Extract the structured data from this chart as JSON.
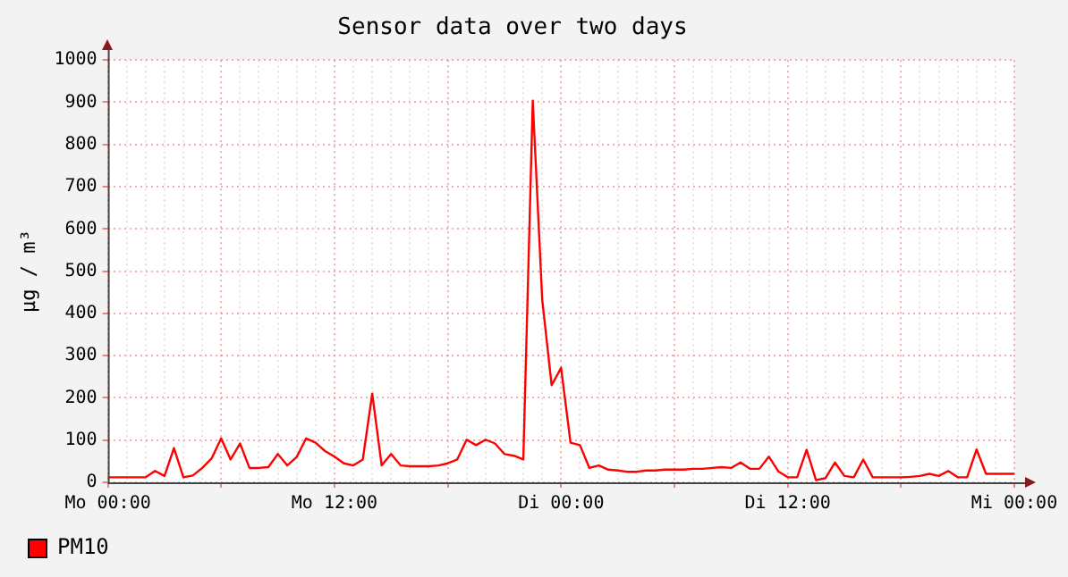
{
  "chart_data": {
    "type": "line",
    "title": "Sensor data over two days",
    "ylabel": "µg / m³",
    "categories": [
      "Mo 00:00",
      null,
      null,
      null,
      null,
      null,
      null,
      null,
      null,
      null,
      null,
      null,
      null,
      null,
      null,
      null,
      null,
      null,
      null,
      null,
      null,
      null,
      null,
      null,
      "Mo 12:00",
      null,
      null,
      null,
      null,
      null,
      null,
      null,
      null,
      null,
      null,
      null,
      null,
      null,
      null,
      null,
      null,
      null,
      null,
      null,
      null,
      null,
      null,
      null,
      "Di 00:00",
      null,
      null,
      null,
      null,
      null,
      null,
      null,
      null,
      null,
      null,
      null,
      null,
      null,
      null,
      null,
      null,
      null,
      null,
      null,
      null,
      null,
      null,
      null,
      "Di 12:00",
      null,
      null,
      null,
      null,
      null,
      null,
      null,
      null,
      null,
      null,
      null,
      null,
      null,
      null,
      null,
      null,
      null,
      null,
      null,
      null,
      null,
      null,
      null,
      "Mi 00:00"
    ],
    "ylim": [
      0,
      1000
    ],
    "yticks": [
      0,
      100,
      200,
      300,
      400,
      500,
      600,
      700,
      800,
      900,
      1000
    ],
    "grid": true,
    "legend": "bottom left",
    "marker": "none",
    "line_style": "solid",
    "series": [
      {
        "name": "PM10",
        "color": "#ff0000",
        "values": [
          12,
          12,
          12,
          12,
          12,
          27,
          15,
          81,
          12,
          16,
          34,
          57,
          104,
          54,
          92,
          34,
          34,
          36,
          67,
          40,
          60,
          104,
          94,
          74,
          61,
          45,
          40,
          54,
          210,
          40,
          67,
          40,
          38,
          38,
          38,
          40,
          45,
          54,
          101,
          88,
          101,
          92,
          67,
          63,
          54,
          904,
          433,
          230,
          271,
          94,
          88,
          34,
          40,
          30,
          28,
          25,
          25,
          28,
          28,
          30,
          30,
          30,
          32,
          32,
          34,
          36,
          34,
          47,
          32,
          32,
          61,
          26,
          12,
          12,
          77,
          5,
          10,
          47,
          15,
          12,
          54,
          12,
          12,
          12,
          12,
          13,
          15,
          20,
          15,
          27,
          12,
          12,
          78,
          20,
          20,
          20,
          20
        ]
      }
    ]
  }
}
